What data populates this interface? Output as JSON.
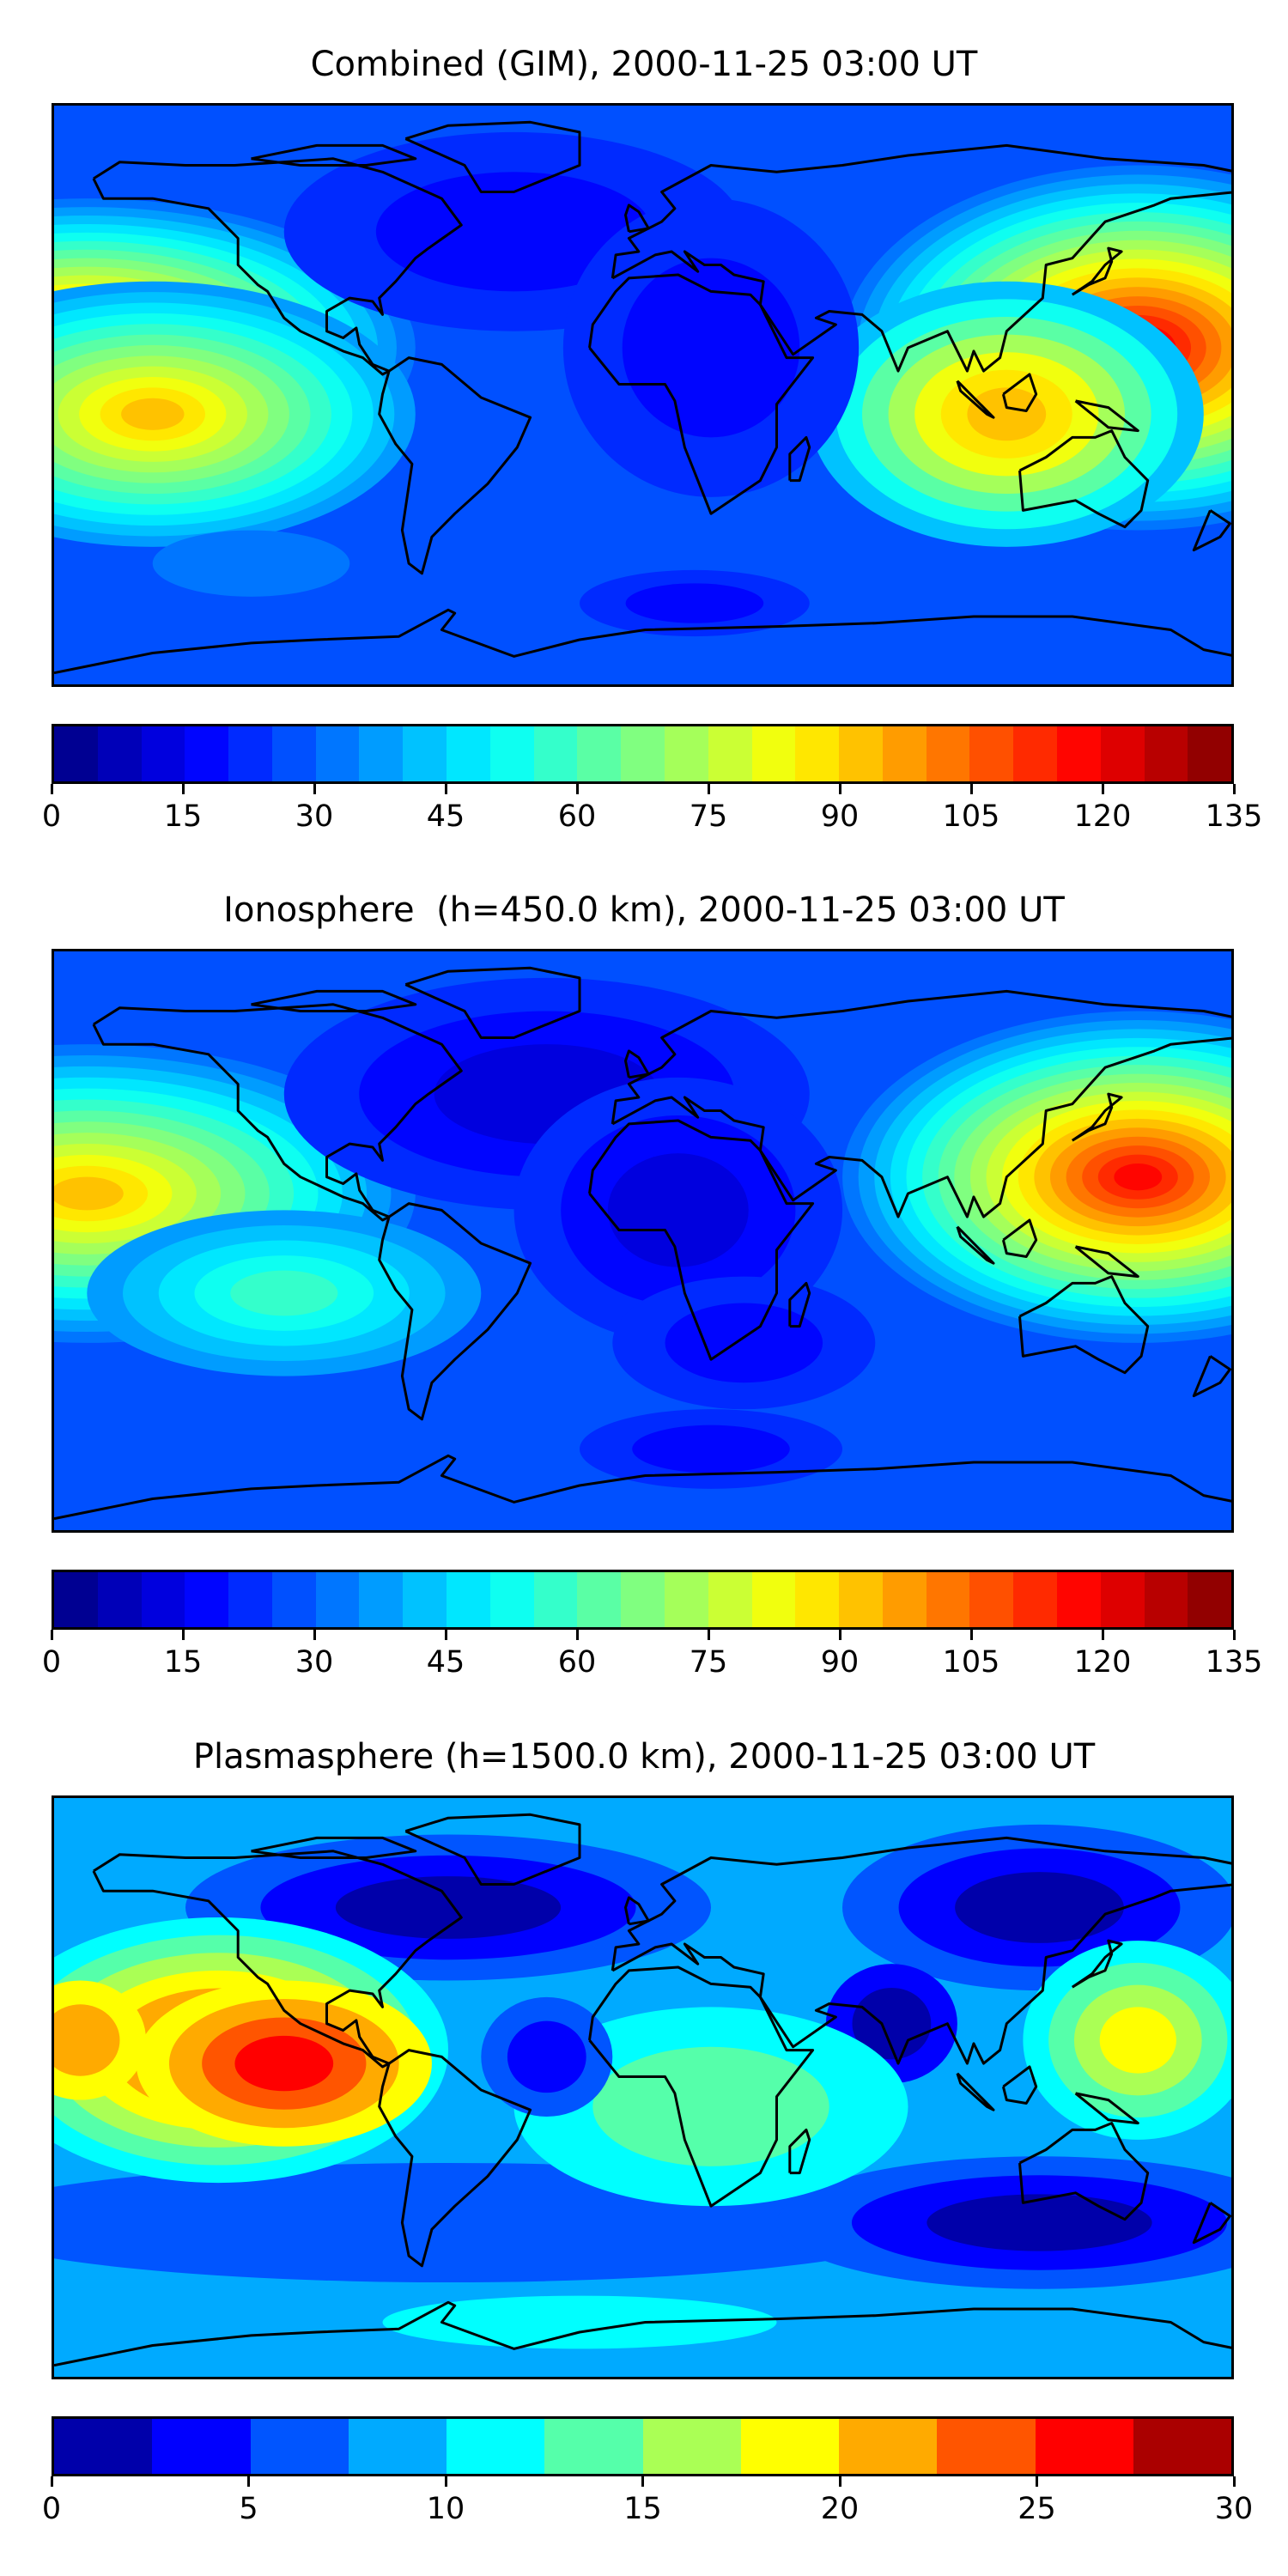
{
  "panels": [
    {
      "title": "Combined (GIM), 2000-11-25 03:00 UT",
      "colorbar": {
        "min": 0,
        "max": 135,
        "step": 5,
        "ticks": [
          "0",
          "15",
          "30",
          "45",
          "60",
          "75",
          "90",
          "105",
          "120",
          "135"
        ]
      }
    },
    {
      "title": "Ionosphere  (h=450.0 km), 2000-11-25 03:00 UT",
      "colorbar": {
        "min": 0,
        "max": 135,
        "step": 5,
        "ticks": [
          "0",
          "15",
          "30",
          "45",
          "60",
          "75",
          "90",
          "105",
          "120",
          "135"
        ]
      }
    },
    {
      "title": "Plasmasphere (h=1500.0 km), 2000-11-25 03:00 UT",
      "colorbar": {
        "min": 0,
        "max": 30,
        "step": 2.5,
        "ticks": [
          "0",
          "5",
          "10",
          "15",
          "20",
          "25",
          "30"
        ]
      }
    }
  ],
  "colormap": "jet",
  "coastline_color": "#000000"
}
